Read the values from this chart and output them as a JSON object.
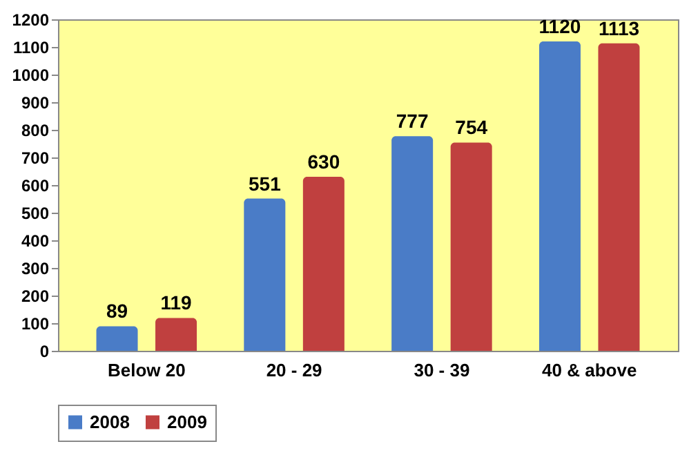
{
  "chart_data": {
    "type": "bar",
    "categories": [
      "Below 20",
      "20 - 29",
      "30 - 39",
      "40 & above"
    ],
    "series": [
      {
        "name": "2008",
        "color": "#4a7cc7",
        "values": [
          89,
          551,
          777,
          1120
        ]
      },
      {
        "name": "2009",
        "color": "#c0403f",
        "values": [
          119,
          630,
          754,
          1113
        ]
      }
    ],
    "ylim": [
      0,
      1200
    ],
    "yticks": [
      0,
      100,
      200,
      300,
      400,
      500,
      600,
      700,
      800,
      900,
      1000,
      1100,
      1200
    ],
    "data_labels": true,
    "legend": "bottom",
    "grid": false
  }
}
